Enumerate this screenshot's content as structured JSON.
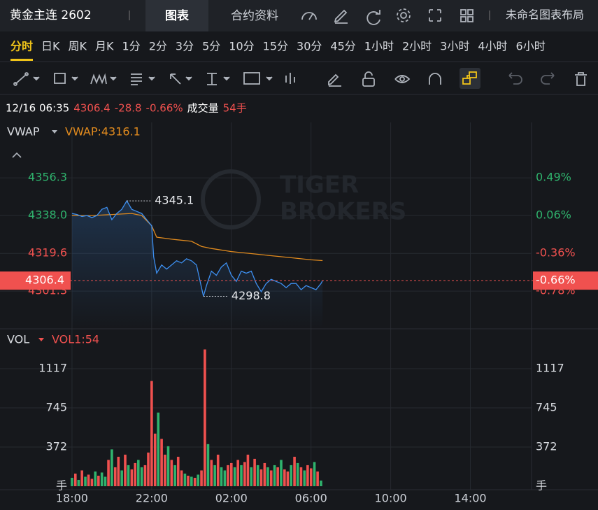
{
  "header": {
    "symbol": "黄金主连 2602",
    "tabs": [
      "图表",
      "合约资料"
    ],
    "layout_name": "未命名图表布局"
  },
  "periods": {
    "items": [
      "分时",
      "日K",
      "周K",
      "月K",
      "1分",
      "2分",
      "3分",
      "5分",
      "10分",
      "15分",
      "30分",
      "45分",
      "1小时",
      "2小时",
      "3小时",
      "4小时",
      "6小时"
    ],
    "active": 0
  },
  "info": {
    "datetime": "12/16 06:35",
    "price": 4306.4,
    "change": -28.8,
    "change_pct": "-0.66%",
    "volume_label": "成交量",
    "volume": "54手"
  },
  "chart": {
    "xlim": [
      -3.614,
      23.07
    ],
    "xticks": [
      {
        "value": 0,
        "label": "18:00"
      },
      {
        "value": 4,
        "label": "22:00"
      },
      {
        "value": 8,
        "label": "02:00"
      },
      {
        "value": 12,
        "label": "06:00"
      },
      {
        "value": 16,
        "label": "10:00"
      },
      {
        "value": 20,
        "label": "14:00"
      }
    ],
    "watermark": [
      "TIGER",
      "BROKERS"
    ],
    "price_pane": {
      "indicator": "VWAP",
      "indicator_value": "VWAP:4316.1",
      "ylim": [
        4283.0,
        4383.2
      ],
      "yticks": [
        4356.3,
        {
          "value": 4338.0,
          "label": "4338.0"
        },
        4319.6,
        4301.3
      ],
      "y2ticks": [
        {
          "value": 4356.3,
          "label": "0.49%"
        },
        {
          "value": 4338.0,
          "label": "0.06%"
        },
        {
          "value": 4319.6,
          "label": "-0.36%"
        },
        {
          "value": 4301.3,
          "label": "-0.78%"
        }
      ],
      "price": {
        "color": "#3d8ff0",
        "x": [
          0,
          0.25,
          0.5,
          0.75,
          1,
          1.25,
          1.5,
          1.75,
          2,
          2.25,
          2.5,
          2.75,
          3,
          3.25,
          3.5,
          3.75,
          4,
          4.1,
          4.25,
          4.5,
          4.75,
          5,
          5.25,
          5.5,
          5.75,
          6,
          6.25,
          6.5,
          6.6,
          6.75,
          7,
          7.25,
          7.5,
          7.75,
          8,
          8.25,
          8.5,
          8.75,
          9,
          9.25,
          9.5,
          9.75,
          10,
          10.25,
          10.5,
          10.75,
          11,
          11.25,
          11.5,
          11.75,
          12,
          12.25,
          12.5,
          12.58
        ],
        "values": [
          4339,
          4338.5,
          4337.5,
          4338,
          4337,
          4338,
          4341,
          4342,
          4336,
          4339,
          4341,
          4345.1,
          4341,
          4340,
          4339,
          4336,
          4333,
          4318,
          4310,
          4314,
          4312,
          4314,
          4316,
          4315,
          4317,
          4316,
          4314,
          4303,
          4298.8,
          4304,
          4311,
          4309,
          4313,
          4315,
          4309,
          4306,
          4311,
          4310,
          4311,
          4305,
          4301,
          4305,
          4307,
          4306,
          4305,
          4303,
          4305,
          4305,
          4302,
          4304,
          4303,
          4302,
          4305,
          4306.4
        ]
      },
      "vwap": {
        "color": "#e08a1e",
        "x": [
          0,
          1,
          2,
          3,
          3.5,
          4,
          4.25,
          5,
          6,
          6.5,
          7,
          8,
          9,
          10,
          11,
          12,
          12.58
        ],
        "values": [
          4338,
          4338,
          4338.5,
          4339,
          4338,
          4333,
          4327.5,
          4326.5,
          4325.5,
          4323,
          4322,
          4320.5,
          4319.5,
          4318.5,
          4317.5,
          4316.5,
          4316.1
        ]
      }
    },
    "volume_pane": {
      "indicator": "VOL",
      "indicator_value": "VOL1:54",
      "ylim": [
        0,
        1496
      ],
      "yticks": [
        {
          "value": 0,
          "label": "手"
        },
        372,
        745,
        1117
      ],
      "colors": [
        "#2fb36d",
        "#f0514f"
      ],
      "x": [
        0,
        0.17,
        0.33,
        0.5,
        0.67,
        0.83,
        1,
        1.17,
        1.33,
        1.5,
        1.67,
        1.83,
        2,
        2.17,
        2.33,
        2.5,
        2.67,
        2.83,
        3,
        3.17,
        3.33,
        3.5,
        3.67,
        3.83,
        4,
        4.17,
        4.33,
        4.5,
        4.67,
        4.83,
        5,
        5.17,
        5.33,
        5.5,
        5.67,
        5.83,
        6,
        6.17,
        6.33,
        6.5,
        6.67,
        6.83,
        7,
        7.17,
        7.33,
        7.5,
        7.67,
        7.83,
        8,
        8.17,
        8.33,
        8.5,
        8.67,
        8.83,
        9,
        9.17,
        9.33,
        9.5,
        9.67,
        9.83,
        10,
        10.17,
        10.33,
        10.5,
        10.67,
        10.83,
        11,
        11.17,
        11.33,
        11.5,
        11.67,
        11.83,
        12,
        12.17,
        12.33,
        12.5
      ],
      "values": [
        80,
        120,
        60,
        150,
        90,
        110,
        70,
        140,
        100,
        130,
        90,
        250,
        350,
        180,
        280,
        150,
        300,
        200,
        160,
        220,
        250,
        180,
        200,
        320,
        1000,
        500,
        700,
        450,
        300,
        380,
        250,
        200,
        280,
        150,
        120,
        100,
        90,
        80,
        110,
        150,
        1300,
        400,
        250,
        200,
        300,
        180,
        150,
        200,
        220,
        180,
        250,
        200,
        230,
        300,
        180,
        260,
        200,
        160,
        220,
        180,
        150,
        200,
        180,
        250,
        160,
        140,
        200,
        280,
        220,
        180,
        150,
        200,
        170,
        230,
        140,
        54
      ],
      "color_index": [
        0,
        1,
        0,
        1,
        0,
        1,
        1,
        0,
        1,
        0,
        0,
        1,
        0,
        1,
        1,
        0,
        1,
        0,
        1,
        1,
        0,
        0,
        1,
        1,
        1,
        1,
        0,
        1,
        1,
        0,
        1,
        0,
        1,
        1,
        0,
        1,
        0,
        1,
        0,
        1,
        1,
        0,
        1,
        0,
        1,
        0,
        0,
        1,
        1,
        0,
        1,
        0,
        1,
        1,
        0,
        1,
        0,
        1,
        1,
        0,
        1,
        0,
        1,
        0,
        1,
        1,
        0,
        1,
        0,
        1,
        0,
        1,
        1,
        0,
        1,
        0
      ]
    }
  }
}
